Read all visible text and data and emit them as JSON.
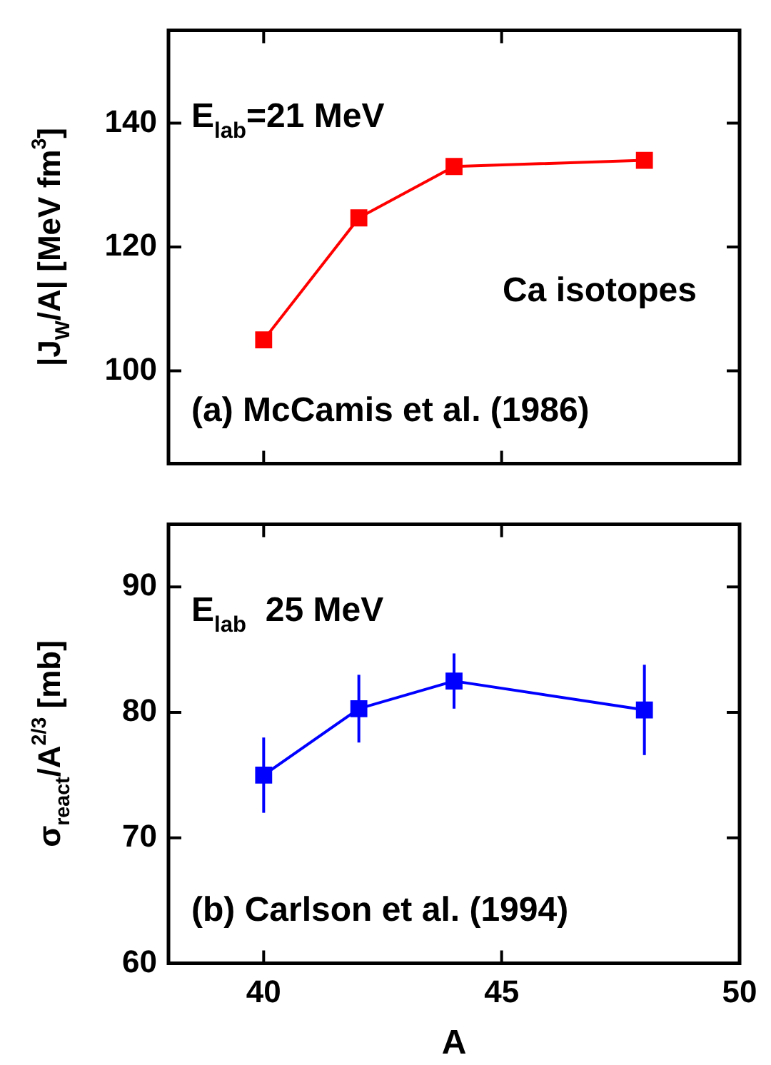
{
  "chart_data": [
    {
      "type": "line",
      "x": [
        40,
        42,
        44,
        48
      ],
      "values": [
        105,
        124.7,
        133,
        134
      ],
      "color": "#ff0000",
      "marker": "square",
      "xlim": [
        38,
        50
      ],
      "xticks": [
        40,
        45,
        50
      ],
      "ylim": [
        85,
        155
      ],
      "yticks": [
        100,
        120,
        140
      ],
      "tick_labels": "y",
      "ylabel": "|J$_{W}$/A| [MeV fm$^{3}$]",
      "annotations": [
        "E$_{lab}$=21 MeV",
        "Ca isotopes",
        "(a) McCamis et al. (1986)"
      ]
    },
    {
      "type": "line",
      "x": [
        40,
        42,
        44,
        48
      ],
      "values": [
        75,
        80.3,
        82.5,
        80.2
      ],
      "errors": [
        3,
        2.7,
        2.2,
        3.6
      ],
      "color": "#0000ff",
      "marker": "square",
      "xlim": [
        38,
        50
      ],
      "xticks": [
        40,
        45,
        50
      ],
      "ylim": [
        60,
        95
      ],
      "yticks": [
        60,
        70,
        80,
        90
      ],
      "xlabel": "A",
      "ylabel": "σ$_{react}$/A$^{2/3}$ [mb]",
      "annotations": [
        "E$_{lab}$  25 MeV",
        "(b) Carlson et al. (1994)"
      ]
    }
  ]
}
